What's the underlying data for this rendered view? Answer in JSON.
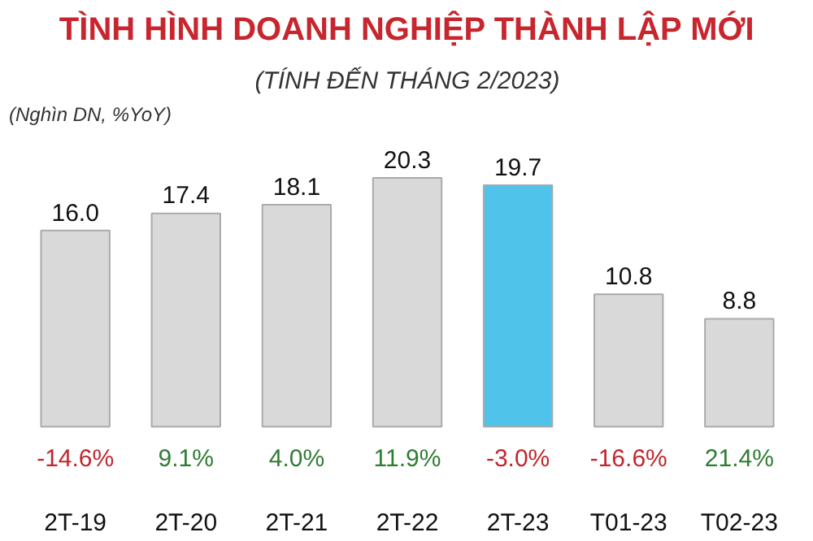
{
  "chart_data": {
    "type": "bar",
    "title": "TÌNH HÌNH DOANH NGHIỆP THÀNH LẬP MỚI",
    "subtitle": "(TÍNH ĐẾN THÁNG 2/2023)",
    "categories": [
      "2T-19",
      "2T-20",
      "2T-21",
      "2T-22",
      "2T-23",
      "T01-23",
      "T02-23"
    ],
    "values": [
      16.0,
      17.4,
      18.1,
      20.3,
      19.7,
      10.8,
      8.8
    ],
    "value_labels": [
      "16.0",
      "17.4",
      "18.1",
      "20.3",
      "19.7",
      "10.8",
      "8.8"
    ],
    "colors": [
      "#d9d9d9",
      "#d9d9d9",
      "#d9d9d9",
      "#d9d9d9",
      "#4fc3ea",
      "#d9d9d9",
      "#d9d9d9"
    ],
    "annotations": [
      "(Nghìn DN, %YoY)",
      "-14.6%",
      "9.1%",
      "4.0%",
      "11.9%",
      "-3.0%",
      "-16.6%",
      "21.4%"
    ]
  }
}
